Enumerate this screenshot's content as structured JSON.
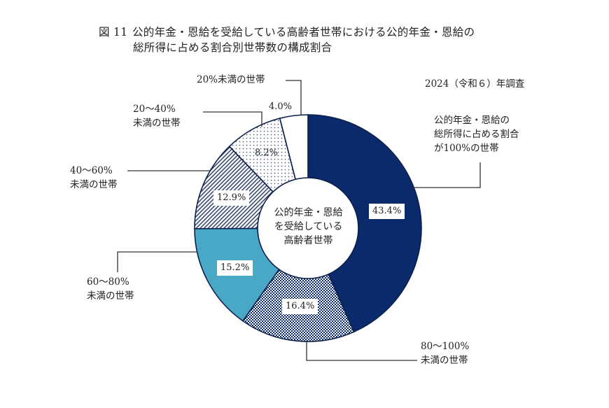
{
  "title": {
    "figure_no": "図 11",
    "line1": "公的年金・恩給を受給している高齢者世帯における公的年金・恩給の",
    "line2": "総所得に占める割合別世帯数の構成割合"
  },
  "survey_note": "2024（令和６）年調査",
  "center_label": {
    "line1": "公的年金・恩給",
    "line2": "を受給している",
    "line3": "高齢者世帯"
  },
  "segments": [
    {
      "key": "s100",
      "label_lines": [
        "公的年金・恩給の",
        "総所得に占める割合",
        "が100%の世帯"
      ],
      "value_text": "43.4%",
      "fill": "#0b2a6b",
      "pattern": "solid"
    },
    {
      "key": "s80",
      "label_lines": [
        "80〜100%",
        "未満の世帯"
      ],
      "value_text": "16.4%",
      "fill": "#0b2a6b",
      "pattern": "checker"
    },
    {
      "key": "s60",
      "label_lines": [
        "60〜80%",
        "未満の世帯"
      ],
      "value_text": "15.2%",
      "fill": "#4aa8c7",
      "pattern": "solid"
    },
    {
      "key": "s40",
      "label_lines": [
        "40〜60%",
        "未満の世帯"
      ],
      "value_text": "12.9%",
      "fill": "#0b2a6b",
      "pattern": "diagonal"
    },
    {
      "key": "s20",
      "label_lines": [
        "20〜40%",
        "未満の世帯"
      ],
      "value_text": "8.2%",
      "fill": "#0b2a6b",
      "pattern": "dots"
    },
    {
      "key": "s0",
      "label_lines": [
        "20%未満の世帯"
      ],
      "value_text": "4.0%",
      "fill": "#ffffff",
      "pattern": "solid"
    }
  ],
  "chart_data": {
    "type": "pie",
    "subtype": "donut",
    "title": "図 11 公的年金・恩給を受給している高齢者世帯における公的年金・恩給の総所得に占める割合別世帯数の構成割合",
    "subtitle": "2024（令和６）年調査",
    "center_text": "公的年金・恩給を受給している高齢者世帯",
    "categories": [
      "公的年金・恩給の総所得に占める割合が100%の世帯",
      "80〜100%未満の世帯",
      "60〜80%未満の世帯",
      "40〜60%未満の世帯",
      "20〜40%未満の世帯",
      "20%未満の世帯"
    ],
    "values": [
      43.4,
      16.4,
      15.2,
      12.9,
      8.2,
      4.0
    ],
    "units": "%",
    "start_angle": "12 o'clock, clockwise",
    "legend": "callout labels with leader lines"
  }
}
